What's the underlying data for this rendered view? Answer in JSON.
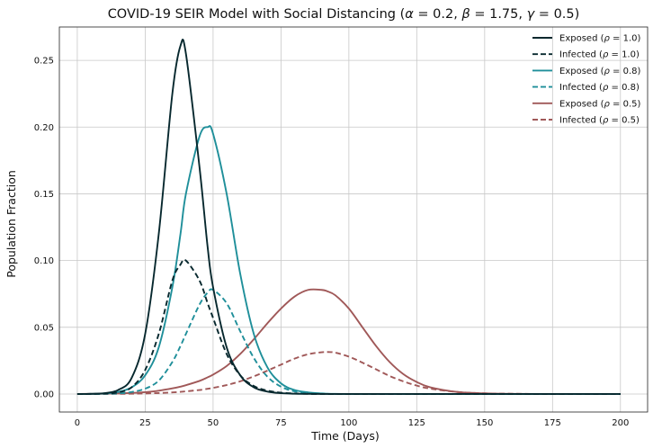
{
  "chart_data": {
    "type": "line",
    "title": "COVID-19 SEIR Model with Social Distancing (α = 0.2, β = 1.75, γ = 0.5)",
    "title_parts": [
      "COVID-19 SEIR Model with Social Distancing (",
      "α",
      " = 0.2, ",
      "β",
      " = 1.75, ",
      "γ",
      " = 0.5)"
    ],
    "xlabel": "Time (Days)",
    "ylabel": "Population Fraction",
    "xlim": [
      -6.6,
      210
    ],
    "ylim": [
      -0.0135,
      0.275
    ],
    "xticks": [
      0,
      25,
      50,
      75,
      100,
      125,
      150,
      175,
      200
    ],
    "xtick_labels": [
      "0",
      "25",
      "50",
      "75",
      "100",
      "125",
      "150",
      "175",
      "200"
    ],
    "yticks": [
      0.0,
      0.05,
      0.1,
      0.15,
      0.2,
      0.25
    ],
    "ytick_labels": [
      "0.00",
      "0.05",
      "0.10",
      "0.15",
      "0.20",
      "0.25"
    ],
    "grid": true,
    "legend_position": "top-right",
    "x": [
      0,
      5,
      10,
      15,
      20,
      25,
      30,
      35,
      38,
      40,
      45,
      48,
      50,
      55,
      60,
      65,
      70,
      75,
      80,
      85,
      90,
      92,
      95,
      100,
      105,
      110,
      115,
      120,
      125,
      130,
      140,
      150,
      160,
      170,
      180,
      190,
      200
    ],
    "series": [
      {
        "name_parts": [
          "Exposed (",
          "ρ",
          " = 1.0)"
        ],
        "color": "#07282e",
        "dash": "solid",
        "values": [
          0.0,
          0.0001,
          0.0006,
          0.003,
          0.012,
          0.045,
          0.12,
          0.225,
          0.261,
          0.255,
          0.17,
          0.11,
          0.08,
          0.035,
          0.014,
          0.005,
          0.0018,
          0.0006,
          0.0002,
          0.0001,
          0.0,
          0.0,
          0.0,
          0.0,
          0.0,
          0.0,
          0.0,
          0.0,
          0.0,
          0.0,
          0.0,
          0.0,
          0.0,
          0.0,
          0.0,
          0.0,
          0.0
        ]
      },
      {
        "name_parts": [
          "Infected (",
          "ρ",
          " = 1.0)"
        ],
        "color": "#07282e",
        "dash": "dashed",
        "values": [
          0.0,
          0.0001,
          0.0003,
          0.0012,
          0.005,
          0.018,
          0.045,
          0.085,
          0.097,
          0.1,
          0.085,
          0.068,
          0.057,
          0.03,
          0.014,
          0.006,
          0.0025,
          0.001,
          0.0004,
          0.0001,
          0.0,
          0.0,
          0.0,
          0.0,
          0.0,
          0.0,
          0.0,
          0.0,
          0.0,
          0.0,
          0.0,
          0.0,
          0.0,
          0.0,
          0.0,
          0.0,
          0.0
        ]
      },
      {
        "name_parts": [
          "Exposed (",
          "ρ",
          " = 0.8)"
        ],
        "color": "#1f8f9a",
        "dash": "solid",
        "values": [
          0.0,
          0.0001,
          0.0004,
          0.0015,
          0.005,
          0.014,
          0.035,
          0.08,
          0.12,
          0.15,
          0.193,
          0.2,
          0.195,
          0.15,
          0.09,
          0.045,
          0.02,
          0.008,
          0.003,
          0.0012,
          0.0004,
          0.0002,
          0.0001,
          0.0,
          0.0,
          0.0,
          0.0,
          0.0,
          0.0,
          0.0,
          0.0,
          0.0,
          0.0,
          0.0,
          0.0,
          0.0,
          0.0
        ]
      },
      {
        "name_parts": [
          "Infected (",
          "ρ",
          " = 0.8)"
        ],
        "color": "#1f8f9a",
        "dash": "dashed",
        "values": [
          0.0,
          0.0,
          0.0001,
          0.0004,
          0.0015,
          0.004,
          0.01,
          0.024,
          0.036,
          0.045,
          0.067,
          0.076,
          0.078,
          0.068,
          0.047,
          0.027,
          0.013,
          0.0055,
          0.002,
          0.0008,
          0.0003,
          0.0001,
          0.0,
          0.0,
          0.0,
          0.0,
          0.0,
          0.0,
          0.0,
          0.0,
          0.0,
          0.0,
          0.0,
          0.0,
          0.0,
          0.0,
          0.0
        ]
      },
      {
        "name_parts": [
          "Exposed (",
          "ρ",
          " = 0.5)"
        ],
        "color": "#a05858",
        "dash": "solid",
        "values": [
          0.0,
          0.0001,
          0.0002,
          0.0004,
          0.0008,
          0.0014,
          0.0025,
          0.0042,
          0.0055,
          0.0066,
          0.0098,
          0.0125,
          0.0145,
          0.021,
          0.03,
          0.041,
          0.053,
          0.064,
          0.073,
          0.078,
          0.078,
          0.077,
          0.074,
          0.064,
          0.05,
          0.036,
          0.024,
          0.015,
          0.009,
          0.005,
          0.0015,
          0.0005,
          0.0001,
          0.0,
          0.0,
          0.0,
          0.0
        ]
      },
      {
        "name_parts": [
          "Infected (",
          "ρ",
          " = 0.5)"
        ],
        "color": "#a05858",
        "dash": "dashed",
        "values": [
          0.0,
          0.0,
          0.0001,
          0.0001,
          0.0002,
          0.0004,
          0.0007,
          0.0012,
          0.0016,
          0.002,
          0.003,
          0.0039,
          0.0046,
          0.0067,
          0.0095,
          0.0132,
          0.0175,
          0.022,
          0.0265,
          0.0298,
          0.0313,
          0.0315,
          0.031,
          0.028,
          0.0235,
          0.0185,
          0.0135,
          0.0095,
          0.0063,
          0.004,
          0.0015,
          0.0005,
          0.0002,
          0.0,
          0.0,
          0.0,
          0.0
        ]
      }
    ]
  }
}
